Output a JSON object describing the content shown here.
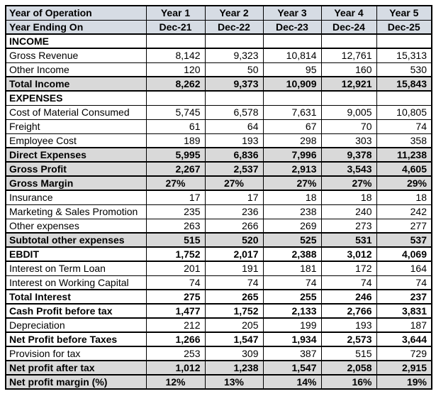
{
  "colors": {
    "header_bg": "#d6dce4",
    "subtotal_bg": "#d9d9d9",
    "border": "#000000",
    "text": "#000000",
    "row_bg": "#ffffff"
  },
  "table": {
    "title": "Year of Operation",
    "year_columns": [
      "Year 1",
      "Year 2",
      "Year 3",
      "Year 4",
      "Year 5"
    ],
    "rows": [
      {
        "label": "Year of Operation",
        "type": "header",
        "values": [
          "Year 1",
          "Year 2",
          "Year 3",
          "Year 4",
          "Year 5"
        ]
      },
      {
        "label": "Year Ending On",
        "type": "header",
        "thick_bottom": true,
        "values": [
          "Dec-21",
          "Dec-22",
          "Dec-23",
          "Dec-24",
          "Dec-25"
        ]
      },
      {
        "label": "INCOME",
        "type": "section",
        "thick_bottom": true,
        "values": [
          "",
          "",
          "",
          "",
          ""
        ]
      },
      {
        "label": "Gross Revenue",
        "type": "item",
        "values": [
          "8,142",
          "9,323",
          "10,814",
          "12,761",
          "15,313"
        ]
      },
      {
        "label": "Other Income",
        "type": "item",
        "values": [
          "120",
          "50",
          "95",
          "160",
          "530"
        ]
      },
      {
        "label": "Total Income",
        "type": "total_gray",
        "values": [
          "8,262",
          "9,373",
          "10,909",
          "12,921",
          "15,843"
        ]
      },
      {
        "label": "EXPENSES",
        "type": "section",
        "values": [
          "",
          "",
          "",
          "",
          ""
        ]
      },
      {
        "label": "Cost of Material Consumed",
        "type": "item",
        "values": [
          "5,745",
          "6,578",
          "7,631",
          "9,005",
          "10,805"
        ]
      },
      {
        "label": "Freight",
        "type": "item",
        "values": [
          "61",
          "64",
          "67",
          "70",
          "74"
        ]
      },
      {
        "label": "Employee Cost",
        "type": "item",
        "values": [
          "189",
          "193",
          "298",
          "303",
          "358"
        ]
      },
      {
        "label": "Direct Expenses",
        "type": "total_gray",
        "values": [
          "5,995",
          "6,836",
          "7,996",
          "9,378",
          "11,238"
        ]
      },
      {
        "label": "Gross Profit",
        "type": "total_gray",
        "values": [
          "2,267",
          "2,537",
          "2,913",
          "3,543",
          "4,605"
        ]
      },
      {
        "label": "Gross Margin",
        "type": "total_gray",
        "percent": true,
        "values": [
          "27%",
          "27%",
          "27%",
          "27%",
          "29%"
        ]
      },
      {
        "label": "Insurance",
        "type": "item",
        "values": [
          "17",
          "17",
          "18",
          "18",
          "18"
        ]
      },
      {
        "label": "Marketing & Sales Promotion",
        "type": "item",
        "values": [
          "235",
          "236",
          "238",
          "240",
          "242"
        ]
      },
      {
        "label": "Other expenses",
        "type": "item",
        "values": [
          "263",
          "266",
          "269",
          "273",
          "277"
        ]
      },
      {
        "label": "Subtotal other expenses",
        "type": "total_gray",
        "values": [
          "515",
          "520",
          "525",
          "531",
          "537"
        ]
      },
      {
        "label": "EBDIT",
        "type": "total_white",
        "values": [
          "1,752",
          "2,017",
          "2,388",
          "3,012",
          "4,069"
        ]
      },
      {
        "label": "Interest on Term Loan",
        "type": "item",
        "values": [
          "201",
          "191",
          "181",
          "172",
          "164"
        ]
      },
      {
        "label": "Interest on Working Capital",
        "type": "item",
        "values": [
          "74",
          "74",
          "74",
          "74",
          "74"
        ]
      },
      {
        "label": "Total Interest",
        "type": "total_white",
        "values": [
          "275",
          "265",
          "255",
          "246",
          "237"
        ]
      },
      {
        "label": "Cash Profit before tax",
        "type": "total_white",
        "values": [
          "1,477",
          "1,752",
          "2,133",
          "2,766",
          "3,831"
        ]
      },
      {
        "label": "Depreciation",
        "type": "item",
        "values": [
          "212",
          "205",
          "199",
          "193",
          "187"
        ]
      },
      {
        "label": "Net Profit before Taxes",
        "type": "total_white",
        "values": [
          "1,266",
          "1,547",
          "1,934",
          "2,573",
          "3,644"
        ]
      },
      {
        "label": "Provision for tax",
        "type": "item",
        "values": [
          "253",
          "309",
          "387",
          "515",
          "729"
        ]
      },
      {
        "label": "Net profit after tax",
        "type": "total_gray",
        "values": [
          "1,012",
          "1,238",
          "1,547",
          "2,058",
          "2,915"
        ]
      },
      {
        "label": "Net profit margin (%)",
        "type": "total_gray",
        "percent": true,
        "values": [
          "12%",
          "13%",
          "14%",
          "16%",
          "19%"
        ]
      }
    ]
  }
}
